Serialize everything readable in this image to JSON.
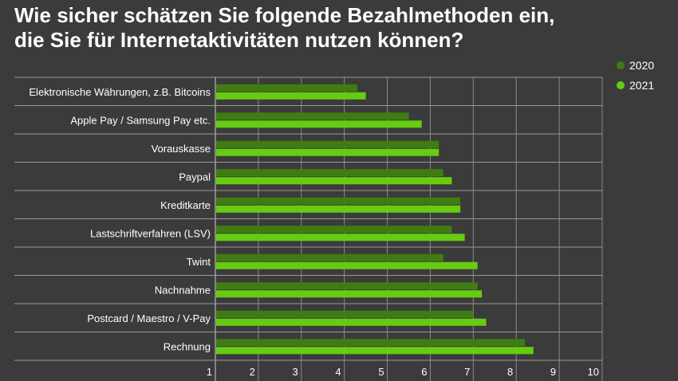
{
  "chart_data": {
    "type": "bar",
    "orientation": "horizontal",
    "title_lines": [
      "Wie sicher schätzen Sie folgende Bezahlmethoden ein,",
      "die Sie für Internetaktivitäten nutzen können?"
    ],
    "categories": [
      "Elektronische Währungen, z.B. Bitcoins",
      "Apple Pay / Samsung Pay etc.",
      "Vorauskasse",
      "Paypal",
      "Kreditkarte",
      "Lastschriftverfahren (LSV)",
      "Twint",
      "Nachnahme",
      "Postcard / Maestro / V-Pay",
      "Rechnung"
    ],
    "series": [
      {
        "name": "2020",
        "color": "#3f7d12",
        "values": [
          4.3,
          5.5,
          6.2,
          6.3,
          6.7,
          6.5,
          6.3,
          7.1,
          7.0,
          8.2
        ]
      },
      {
        "name": "2021",
        "color": "#66cc11",
        "values": [
          4.5,
          5.8,
          6.2,
          6.5,
          6.7,
          6.8,
          7.1,
          7.2,
          7.3,
          8.4
        ]
      }
    ],
    "xlim": [
      1,
      10
    ],
    "xticks": [
      "1",
      "2",
      "3",
      "4",
      "5",
      "6",
      "7",
      "8",
      "9",
      "10"
    ],
    "grid": true,
    "legend_position": "top-right"
  }
}
